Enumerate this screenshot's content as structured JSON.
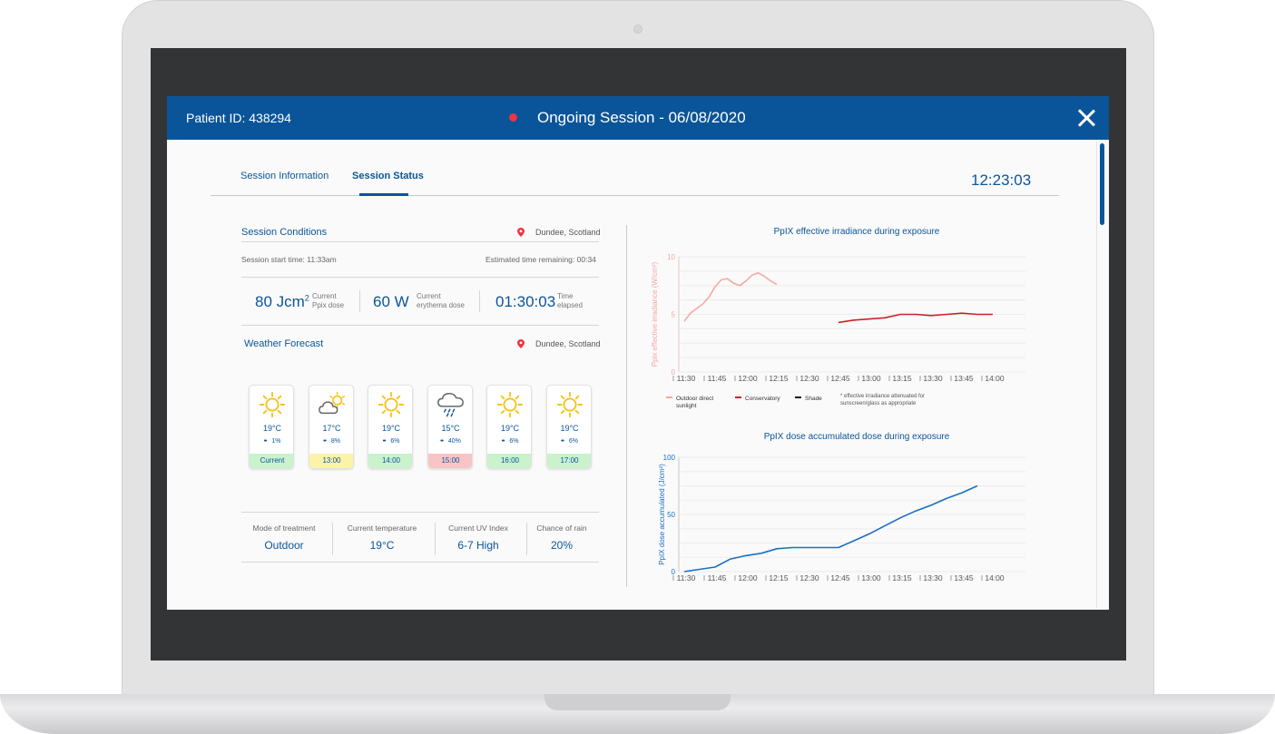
{
  "header": {
    "patient_id": "Patient ID: 438294",
    "session_title": "Ongoing Session - 06/08/2020"
  },
  "tabs": [
    {
      "label": "Session Information",
      "active": false
    },
    {
      "label": "Session Status",
      "active": true
    }
  ],
  "clock": "12:23:03",
  "conditions": {
    "title": "Session Conditions",
    "location": "Dundee, Scotland",
    "start_time": "Session start time: 11:33am",
    "remaining": "Estimated time remaining: 00:34"
  },
  "metrics": [
    {
      "value": "80 Jcm",
      "sup": "2",
      "label1": "Current",
      "label2": "Ppix dose"
    },
    {
      "value": "60 W",
      "sup": "",
      "label1": "Current",
      "label2": "erythema dose"
    },
    {
      "value": "01:30:03",
      "sup": "",
      "label1": "Time",
      "label2": "elapsed"
    }
  ],
  "forecast": {
    "title": "Weather Forecast",
    "location": "Dundee, Scotland",
    "cards": [
      {
        "icon": "sun-icon",
        "temp": "19",
        "unit": "°C",
        "rain": "1%",
        "time": "Current",
        "color": "#c9f2cd"
      },
      {
        "icon": "partly-cloudy-icon",
        "temp": "17",
        "unit": "°C",
        "rain": "8%",
        "time": "13:00",
        "color": "#fbf3a8"
      },
      {
        "icon": "sun-icon",
        "temp": "19",
        "unit": "°C",
        "rain": "6%",
        "time": "14:00",
        "color": "#c9f2cd"
      },
      {
        "icon": "rain-cloud-icon",
        "temp": "15",
        "unit": "°C",
        "rain": "40%",
        "time": "15:00",
        "color": "#f8c4c6"
      },
      {
        "icon": "sun-icon",
        "temp": "19",
        "unit": "°C",
        "rain": "6%",
        "time": "16:00",
        "color": "#c9f2cd"
      },
      {
        "icon": "sun-icon",
        "temp": "19",
        "unit": "°C",
        "rain": "6%",
        "time": "17:00",
        "color": "#c9f2cd"
      }
    ]
  },
  "summary": [
    {
      "label": "Mode of treatment",
      "value": "Outdoor"
    },
    {
      "label": "Current temperature",
      "value": "19°C"
    },
    {
      "label": "Current UV Index",
      "value": "6-7 High"
    },
    {
      "label": "Chance of rain",
      "value": "20%"
    }
  ],
  "colors": {
    "brand": "#0a5599",
    "sun": "#f5c518",
    "outdoor": "#f4a9a2",
    "conservatory": "#c8242b",
    "shade": "#111111",
    "dose_line": "#1a6fc4"
  },
  "chart_data": [
    {
      "type": "line",
      "title": "PpIX effective irradiance during exposure",
      "ylabel": "Ppix effective irradiance (W/cm²)",
      "ylim": [
        0,
        10
      ],
      "yticks": [
        "0",
        "5",
        "10"
      ],
      "categories": [
        "11:30",
        "11:45",
        "12:00",
        "12:15",
        "12:30",
        "12:45",
        "13:00",
        "13:15",
        "13:30",
        "13:45",
        "14:00"
      ],
      "series": [
        {
          "name": "Outdoor direct sunlight",
          "x": [
            0,
            0.2,
            0.4,
            0.6,
            0.8,
            1.0,
            1.2,
            1.4,
            1.6,
            1.8,
            2.0,
            2.2,
            2.4,
            2.6,
            2.8,
            3.0
          ],
          "y": [
            4.4,
            5.1,
            5.5,
            5.9,
            6.5,
            7.4,
            8.0,
            8.1,
            7.7,
            7.5,
            7.9,
            8.4,
            8.6,
            8.3,
            7.9,
            7.6
          ]
        },
        {
          "name": "Conservatory",
          "x": [
            5.0,
            5.5,
            6.0,
            6.5,
            7.0,
            7.5,
            8.0,
            8.5,
            9.0,
            9.5,
            10.0
          ],
          "y": [
            4.3,
            4.5,
            4.6,
            4.7,
            5.0,
            5.0,
            4.9,
            5.0,
            5.1,
            5.0,
            5.0
          ]
        }
      ],
      "legend": [
        {
          "label": "Outdoor direct sunlight",
          "color": "#f4a9a2"
        },
        {
          "label": "Conservatory",
          "color": "#c8242b"
        },
        {
          "label": "Shade",
          "color": "#111111"
        }
      ],
      "note": "* effective irradiance attenuated for sunscreen/glass as appropriate",
      "grid": true
    },
    {
      "type": "line",
      "title": "PpIX dose accumulated dose during exposure",
      "ylabel": "PpIX dose accumulated (J/cm²)",
      "ylim": [
        0,
        100
      ],
      "yticks": [
        "0",
        "50",
        "100"
      ],
      "categories": [
        "11:30",
        "11:45",
        "12:00",
        "12:15",
        "12:30",
        "12:45",
        "13:00",
        "13:15",
        "13:30",
        "13:45",
        "14:00"
      ],
      "series": [
        {
          "name": "",
          "x": [
            0,
            0.5,
            1.0,
            1.5,
            2.0,
            2.5,
            3.0,
            3.5,
            4.0,
            4.5,
            5.0,
            5.5,
            6.0,
            6.5,
            7.0,
            7.5,
            8.0,
            8.5,
            9.0,
            9.5
          ],
          "y": [
            0,
            2,
            4,
            11,
            14,
            16,
            20,
            21,
            21,
            21,
            21,
            27,
            33,
            40,
            47,
            53,
            58,
            64,
            69,
            75
          ]
        }
      ],
      "grid": true
    }
  ]
}
